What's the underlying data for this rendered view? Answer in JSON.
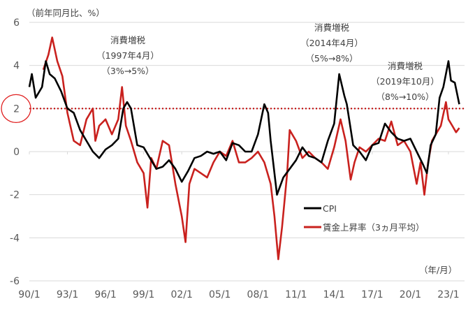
{
  "chart_data": {
    "type": "line",
    "ylabel": "（前年同月比、%）",
    "xlabel": "（年/月）",
    "ylim": [
      -6,
      6
    ],
    "yticks": [
      6,
      4,
      2,
      0,
      -2,
      -4,
      -6
    ],
    "ytick_labels": [
      "6",
      "4",
      "2",
      "0",
      "-2",
      "-4",
      "-6"
    ],
    "xlim": [
      1990,
      2023.85
    ],
    "xticks": [
      1990,
      1993,
      1996,
      1999,
      2002,
      2005,
      2008,
      2011,
      2014,
      2017,
      2020,
      2023
    ],
    "xtick_labels": [
      "90/1",
      "93/1",
      "96/1",
      "99/1",
      "02/1",
      "05/1",
      "08/1",
      "11/1",
      "14/1",
      "17/1",
      "20/1",
      "23/1"
    ],
    "grid": "horizontal",
    "legend_position": "lower-right",
    "reference_line": {
      "value": 2,
      "style": "dotted",
      "color": "#c00000",
      "highlighted_label": "2"
    },
    "annotations": [
      {
        "lines": [
          "消費増税",
          "（1997年4月）",
          "（3%→5%）"
        ]
      },
      {
        "lines": [
          "消費増税",
          "（2014年4月）",
          "（5%→8%）"
        ]
      },
      {
        "lines": [
          "消費増税",
          "（2019年10月）",
          "（8%→10%）"
        ]
      }
    ],
    "series": [
      {
        "name": "CPI",
        "color": "#000000",
        "x": [
          1990.0,
          1990.2,
          1990.5,
          1991.0,
          1991.3,
          1991.6,
          1992.0,
          1992.5,
          1993.0,
          1993.5,
          1994.0,
          1994.5,
          1995.0,
          1995.5,
          1996.0,
          1996.5,
          1997.0,
          1997.4,
          1997.7,
          1998.0,
          1998.5,
          1999.0,
          1999.5,
          2000.0,
          2000.5,
          2001.0,
          2001.5,
          2002.0,
          2002.5,
          2003.0,
          2003.5,
          2004.0,
          2004.5,
          2005.0,
          2005.5,
          2006.0,
          2006.5,
          2007.0,
          2007.5,
          2008.0,
          2008.5,
          2008.8,
          2009.0,
          2009.5,
          2010.0,
          2010.5,
          2011.0,
          2011.5,
          2012.0,
          2012.5,
          2013.0,
          2013.5,
          2014.0,
          2014.4,
          2014.8,
          2015.0,
          2015.5,
          2016.0,
          2016.5,
          2017.0,
          2017.5,
          2018.0,
          2018.5,
          2019.0,
          2019.5,
          2020.0,
          2020.5,
          2021.0,
          2021.3,
          2021.6,
          2022.0,
          2022.3,
          2022.6,
          2023.0,
          2023.2,
          2023.5,
          2023.85
        ],
        "values": [
          3.0,
          3.6,
          2.5,
          3.0,
          4.2,
          3.6,
          3.4,
          2.8,
          2.0,
          1.8,
          1.0,
          0.5,
          0.0,
          -0.3,
          0.1,
          0.3,
          0.6,
          2.0,
          2.3,
          2.0,
          0.3,
          0.2,
          -0.3,
          -0.8,
          -0.7,
          -0.4,
          -0.8,
          -1.4,
          -0.9,
          -0.3,
          -0.2,
          0.0,
          -0.1,
          0.0,
          -0.4,
          0.4,
          0.3,
          0.0,
          0.0,
          0.8,
          2.2,
          1.8,
          0.5,
          -2.0,
          -1.2,
          -0.8,
          -0.4,
          0.2,
          -0.2,
          -0.3,
          -0.5,
          0.5,
          1.3,
          3.6,
          2.6,
          2.2,
          0.3,
          0.0,
          -0.4,
          0.3,
          0.4,
          1.3,
          0.9,
          0.6,
          0.5,
          0.6,
          0.0,
          -0.6,
          -1.0,
          0.3,
          0.8,
          2.5,
          3.0,
          4.2,
          3.3,
          3.2,
          2.2
        ]
      },
      {
        "name": "賃金上昇率（3ヵ月平均）",
        "color": "#c9211e",
        "x": [
          1991.1,
          1991.5,
          1991.8,
          1992.2,
          1992.6,
          1993.0,
          1993.5,
          1994.0,
          1994.5,
          1995.0,
          1995.2,
          1995.5,
          1996.0,
          1996.5,
          1997.0,
          1997.3,
          1997.6,
          1998.0,
          1998.5,
          1999.0,
          1999.3,
          1999.6,
          2000.0,
          2000.5,
          2001.0,
          2001.5,
          2002.0,
          2002.3,
          2002.6,
          2003.0,
          2003.5,
          2004.0,
          2004.5,
          2005.0,
          2005.5,
          2006.0,
          2006.5,
          2007.0,
          2007.5,
          2008.0,
          2008.5,
          2009.0,
          2009.3,
          2009.6,
          2009.9,
          2010.3,
          2010.5,
          2011.0,
          2011.5,
          2012.0,
          2012.5,
          2013.0,
          2013.5,
          2014.0,
          2014.5,
          2014.9,
          2015.3,
          2015.6,
          2016.0,
          2016.5,
          2017.0,
          2017.5,
          2018.0,
          2018.5,
          2019.0,
          2019.5,
          2020.0,
          2020.5,
          2020.8,
          2021.1,
          2021.4,
          2021.7,
          2022.0,
          2022.4,
          2022.8,
          2023.0,
          2023.3,
          2023.6,
          2023.85
        ],
        "values": [
          3.8,
          4.5,
          5.3,
          4.2,
          3.5,
          1.8,
          0.5,
          0.3,
          1.5,
          2.0,
          0.5,
          1.2,
          1.5,
          0.8,
          1.5,
          3.0,
          1.2,
          0.5,
          -0.5,
          -1.0,
          -2.6,
          -0.3,
          -0.8,
          0.5,
          0.3,
          -1.5,
          -3.0,
          -4.2,
          -1.5,
          -0.8,
          -1.0,
          -1.2,
          -0.5,
          0.0,
          -0.2,
          0.5,
          -0.5,
          -0.5,
          -0.3,
          0.0,
          -0.5,
          -1.5,
          -3.0,
          -5.0,
          -3.5,
          -1.0,
          1.0,
          0.5,
          -0.3,
          0.0,
          -0.3,
          -0.5,
          -0.8,
          0.2,
          1.5,
          0.5,
          -1.3,
          -0.5,
          0.2,
          0.0,
          0.3,
          0.6,
          0.5,
          1.4,
          0.3,
          0.5,
          0.0,
          -1.5,
          -0.5,
          -2.0,
          -0.5,
          0.5,
          0.8,
          1.2,
          2.3,
          1.5,
          1.2,
          0.9,
          1.1
        ]
      }
    ]
  }
}
